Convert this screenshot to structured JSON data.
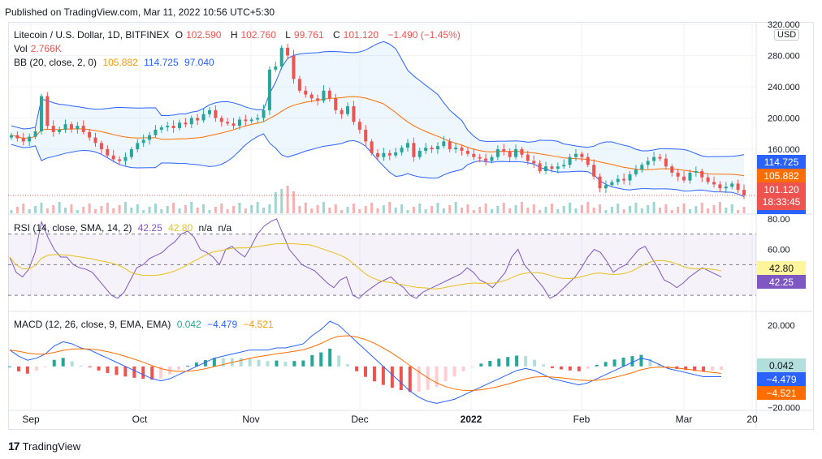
{
  "header": {
    "published": "Published on TradingView.com, Mar 11, 2022 10:56 UTC+5:30"
  },
  "legend": {
    "symbol": "Litecoin / U.S. Dollar, 1D, BITFINEX",
    "o_label": "O",
    "o": "102.590",
    "h_label": "H",
    "h": "102.760",
    "l_label": "L",
    "l": "99.761",
    "c_label": "C",
    "c": "101.120",
    "chg": "−1.490 (−1.45%)",
    "vol_label": "Vol",
    "vol": "2.766K",
    "bb_label": "BB (20, close, 2, 0)",
    "bb_basis": "105.882",
    "bb_upper": "114.725",
    "bb_lower": "97.040",
    "rsi_label": "RSI (14, close, SMA, 14, 2)",
    "rsi_val": "42.25",
    "rsi_ma": "42.80",
    "rsi_na1": "n/a",
    "rsi_na2": "n/a",
    "macd_label": "MACD (12, 26, close, 9, EMA, EMA)",
    "macd_hist": "0.042",
    "macd_line": "−4.479",
    "macd_signal": "−4.521"
  },
  "currency": "USD",
  "footer": {
    "brand": "TradingView",
    "logo": "17"
  },
  "colors": {
    "up": "#26a69a",
    "down": "#ef5350",
    "bb": "#2962ff",
    "basis": "#ff6d00",
    "rsi": "#7e57c2",
    "rsima": "#e8c01d",
    "macd": "#2962ff",
    "signal": "#ff6d00"
  },
  "chart_data": {
    "type": "candlestick",
    "symbol": "LTCUSD",
    "x_ticks": [
      "Sep",
      "Oct",
      "Nov",
      "Dec",
      "2022",
      "Feb",
      "Mar",
      "20"
    ],
    "price_axis": {
      "ticks": [
        "320.000",
        "280.000",
        "240.000",
        "200.000",
        "160.000"
      ],
      "ylim": [
        78,
        322
      ]
    },
    "price_labels": {
      "bb_upper": "114.725",
      "bb_basis": "105.882",
      "last": "101.120",
      "countdown": "18:33:45",
      "bb_lower": "97.040"
    },
    "rsi_axis": {
      "ticks": [
        "80.00",
        "60.00"
      ],
      "ylim": [
        20,
        82
      ],
      "bands": [
        70,
        50,
        30
      ]
    },
    "rsi_labels": {
      "ma": "42.80",
      "rsi": "42.25"
    },
    "macd_axis": {
      "ticks": [
        "20.000",
        "−20.000"
      ],
      "ylim": [
        -21,
        26
      ]
    },
    "macd_labels": {
      "hist": "0.042",
      "macd": "−4.479",
      "signal": "−4.521"
    },
    "close": [
      178,
      174,
      170,
      176,
      183,
      228,
      190,
      182,
      185,
      192,
      186,
      190,
      182,
      175,
      168,
      160,
      152,
      147,
      145,
      150,
      160,
      168,
      172,
      178,
      185,
      188,
      190,
      187,
      194,
      192,
      200,
      197,
      205,
      210,
      200,
      195,
      193,
      190,
      198,
      196,
      198,
      200,
      210,
      262,
      266,
      290,
      280,
      250,
      235,
      230,
      225,
      222,
      235,
      225,
      210,
      205,
      215,
      195,
      185,
      170,
      155,
      150,
      155,
      152,
      156,
      162,
      168,
      150,
      158,
      162,
      160,
      164,
      170,
      160,
      162,
      158,
      154,
      150,
      148,
      145,
      150,
      160,
      157,
      150,
      160,
      153,
      145,
      142,
      132,
      138,
      135,
      138,
      140,
      150,
      154,
      150,
      140,
      125,
      110,
      114,
      118,
      122,
      120,
      128,
      134,
      140,
      145,
      150,
      148,
      138,
      130,
      125,
      120,
      130,
      132,
      124,
      118,
      115,
      110,
      112,
      116,
      108,
      101
    ],
    "volume_note": "relative bars",
    "bb_upper_values": [
      216,
      212,
      205,
      200,
      195,
      215,
      230,
      235,
      230,
      225,
      220,
      215,
      210,
      205,
      200,
      195,
      190,
      192,
      195,
      198,
      202,
      206,
      210,
      215,
      218,
      220,
      222,
      224,
      225,
      226,
      228,
      230,
      232,
      235,
      240,
      245,
      260,
      280,
      290,
      295,
      300,
      290,
      275,
      260,
      250,
      245,
      240,
      235,
      225,
      215,
      205,
      195,
      185,
      180,
      180,
      178,
      176,
      170,
      160,
      155,
      150,
      148,
      150,
      155,
      155,
      150,
      146,
      142,
      138,
      133,
      130,
      128,
      130,
      131,
      130,
      128,
      126,
      124,
      122,
      118,
      116
    ],
    "rsi_values": [
      55,
      45,
      42,
      47,
      58,
      78,
      68,
      60,
      55,
      55,
      50,
      48,
      47,
      45,
      40,
      35,
      30,
      28,
      32,
      40,
      48,
      50,
      54,
      56,
      58,
      62,
      65,
      70,
      72,
      68,
      60,
      58,
      55,
      50,
      60,
      62,
      58,
      55,
      62,
      70,
      75,
      78,
      80,
      70,
      60,
      55,
      50,
      48,
      46,
      42,
      38,
      35,
      40,
      42,
      30,
      28,
      32,
      35,
      38,
      40,
      42,
      38,
      35,
      30,
      28,
      32,
      34,
      36,
      38,
      40,
      42,
      44,
      48,
      45,
      40,
      38,
      35,
      40,
      45,
      55,
      60,
      50,
      45,
      40,
      35,
      28,
      30,
      34,
      38,
      42,
      48,
      55,
      60,
      58,
      52,
      45,
      48,
      50,
      55,
      60,
      62,
      55,
      48,
      40,
      38,
      35,
      38,
      42,
      45,
      48,
      46,
      44,
      42
    ],
    "macd_values": [
      8,
      5,
      3,
      4,
      6,
      10,
      12,
      11,
      9,
      8,
      6,
      4,
      2,
      0,
      -2,
      -4,
      -6,
      -7,
      -6,
      -4,
      -2,
      0,
      2,
      4,
      5,
      6,
      7,
      8,
      8,
      8,
      9,
      9,
      10,
      11,
      15,
      18,
      22,
      20,
      16,
      12,
      8,
      4,
      0,
      -4,
      -8,
      -12,
      -15,
      -17,
      -18,
      -17,
      -16,
      -14,
      -12,
      -10,
      -8,
      -6,
      -4,
      -2,
      -1,
      -2,
      -4,
      -6,
      -7,
      -8,
      -9,
      -8,
      -6,
      -4,
      -2,
      0,
      2,
      4,
      3,
      1,
      -1,
      -2,
      -3,
      -4,
      -5,
      -5,
      -5
    ]
  }
}
